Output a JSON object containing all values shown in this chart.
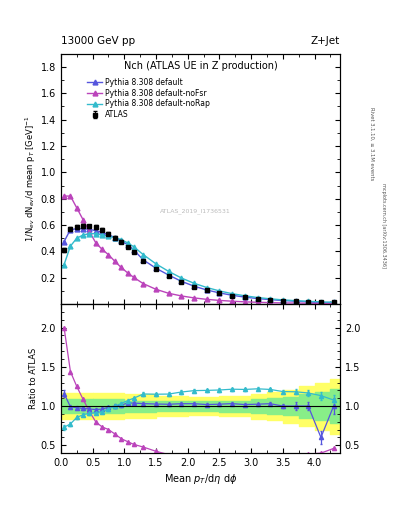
{
  "title_top": "13000 GeV pp",
  "title_right": "Z+Jet",
  "plot_title": "Nch (ATLAS UE in Z production)",
  "ylabel_main": "1/N$_{ev}$ dN$_{ev}$/d mean p$_T$ [GeV]$^{-1}$",
  "ylabel_ratio": "Ratio to ATLAS",
  "xlabel": "Mean $p_T$/d$\\eta$ d$\\phi$",
  "right_label_top": "Rivet 3.1.10, ≥ 3.1M events",
  "right_label_bottom": "mcplots.cern.ch [arXiv:1306.3436]",
  "watermark": "ATLAS_2019_I1736531",
  "atlas_x": [
    0.05,
    0.15,
    0.25,
    0.35,
    0.45,
    0.55,
    0.65,
    0.75,
    0.85,
    0.95,
    1.05,
    1.15,
    1.3,
    1.5,
    1.7,
    1.9,
    2.1,
    2.3,
    2.5,
    2.7,
    2.9,
    3.1,
    3.3,
    3.5,
    3.7,
    3.9,
    4.1,
    4.3
  ],
  "atlas_y": [
    0.41,
    0.57,
    0.585,
    0.59,
    0.59,
    0.585,
    0.565,
    0.535,
    0.505,
    0.475,
    0.435,
    0.395,
    0.325,
    0.265,
    0.215,
    0.168,
    0.132,
    0.105,
    0.083,
    0.065,
    0.052,
    0.041,
    0.033,
    0.027,
    0.022,
    0.018,
    0.015,
    0.013
  ],
  "atlas_yerr": [
    0.015,
    0.015,
    0.015,
    0.015,
    0.012,
    0.012,
    0.012,
    0.01,
    0.01,
    0.01,
    0.009,
    0.009,
    0.008,
    0.007,
    0.006,
    0.005,
    0.004,
    0.004,
    0.003,
    0.003,
    0.003,
    0.003,
    0.002,
    0.002,
    0.002,
    0.002,
    0.002,
    0.002
  ],
  "pythia_default_x": [
    0.05,
    0.15,
    0.25,
    0.35,
    0.45,
    0.55,
    0.65,
    0.75,
    0.85,
    0.95,
    1.05,
    1.15,
    1.3,
    1.5,
    1.7,
    1.9,
    2.1,
    2.3,
    2.5,
    2.7,
    2.9,
    3.1,
    3.3,
    3.5,
    3.7,
    3.9,
    4.1,
    4.3
  ],
  "pythia_default_y": [
    0.475,
    0.565,
    0.572,
    0.572,
    0.568,
    0.557,
    0.544,
    0.527,
    0.505,
    0.48,
    0.452,
    0.41,
    0.335,
    0.272,
    0.22,
    0.173,
    0.136,
    0.107,
    0.085,
    0.067,
    0.053,
    0.042,
    0.034,
    0.027,
    0.022,
    0.018,
    0.009,
    0.013
  ],
  "pythia_default_color": "#5555dd",
  "pythia_nofsr_x": [
    0.05,
    0.15,
    0.25,
    0.35,
    0.45,
    0.55,
    0.65,
    0.75,
    0.85,
    0.95,
    1.05,
    1.15,
    1.3,
    1.5,
    1.7,
    1.9,
    2.1,
    2.3,
    2.5,
    2.7,
    2.9,
    3.1,
    3.3,
    3.5,
    3.7,
    3.9,
    4.1,
    4.3
  ],
  "pythia_nofsr_y": [
    0.82,
    0.82,
    0.73,
    0.64,
    0.55,
    0.465,
    0.415,
    0.375,
    0.325,
    0.278,
    0.238,
    0.202,
    0.155,
    0.112,
    0.082,
    0.062,
    0.047,
    0.036,
    0.028,
    0.022,
    0.017,
    0.014,
    0.011,
    0.009,
    0.008,
    0.007,
    0.006,
    0.006
  ],
  "pythia_nofsr_color": "#bb44bb",
  "pythia_norap_x": [
    0.05,
    0.15,
    0.25,
    0.35,
    0.45,
    0.55,
    0.65,
    0.75,
    0.85,
    0.95,
    1.05,
    1.15,
    1.3,
    1.5,
    1.7,
    1.9,
    2.1,
    2.3,
    2.5,
    2.7,
    2.9,
    3.1,
    3.3,
    3.5,
    3.7,
    3.9,
    4.1,
    4.3
  ],
  "pythia_norap_y": [
    0.3,
    0.44,
    0.5,
    0.525,
    0.535,
    0.535,
    0.525,
    0.515,
    0.505,
    0.49,
    0.465,
    0.435,
    0.375,
    0.305,
    0.248,
    0.198,
    0.158,
    0.126,
    0.1,
    0.079,
    0.063,
    0.05,
    0.04,
    0.032,
    0.026,
    0.021,
    0.017,
    0.014
  ],
  "pythia_norap_color": "#33bbcc",
  "ratio_default_x": [
    0.05,
    0.15,
    0.25,
    0.35,
    0.45,
    0.55,
    0.65,
    0.75,
    0.85,
    0.95,
    1.05,
    1.15,
    1.3,
    1.5,
    1.7,
    1.9,
    2.1,
    2.3,
    2.5,
    2.7,
    2.9,
    3.1,
    3.3,
    3.5,
    3.7,
    3.9,
    4.1,
    4.3
  ],
  "ratio_default_y": [
    1.16,
    0.99,
    0.98,
    0.97,
    0.963,
    0.955,
    0.962,
    0.985,
    1.0,
    1.01,
    1.039,
    1.038,
    1.031,
    1.026,
    1.023,
    1.03,
    1.03,
    1.019,
    1.024,
    1.031,
    1.019,
    1.024,
    1.03,
    1.0,
    1.0,
    1.0,
    0.6,
    1.0
  ],
  "ratio_default_yerr": [
    0.05,
    0.02,
    0.02,
    0.02,
    0.02,
    0.02,
    0.02,
    0.02,
    0.02,
    0.02,
    0.02,
    0.02,
    0.02,
    0.02,
    0.02,
    0.02,
    0.02,
    0.02,
    0.02,
    0.02,
    0.02,
    0.02,
    0.02,
    0.02,
    0.05,
    0.05,
    0.08,
    0.1
  ],
  "ratio_nofsr_x": [
    0.05,
    0.15,
    0.25,
    0.35,
    0.45,
    0.55,
    0.65,
    0.75,
    0.85,
    0.95,
    1.05,
    1.15,
    1.3,
    1.5,
    1.7,
    1.9,
    2.1,
    2.3,
    2.5,
    2.7,
    2.9,
    3.1,
    3.3,
    3.5,
    3.7,
    3.9,
    4.1,
    4.3
  ],
  "ratio_nofsr_y": [
    2.0,
    1.44,
    1.25,
    1.085,
    0.932,
    0.797,
    0.734,
    0.701,
    0.644,
    0.585,
    0.547,
    0.511,
    0.477,
    0.423,
    0.381,
    0.369,
    0.356,
    0.343,
    0.337,
    0.338,
    0.327,
    0.341,
    0.333,
    0.333,
    0.364,
    0.389,
    0.4,
    0.46
  ],
  "ratio_norap_x": [
    0.05,
    0.15,
    0.25,
    0.35,
    0.45,
    0.55,
    0.65,
    0.75,
    0.85,
    0.95,
    1.05,
    1.15,
    1.3,
    1.5,
    1.7,
    1.9,
    2.1,
    2.3,
    2.5,
    2.7,
    2.9,
    3.1,
    3.3,
    3.5,
    3.7,
    3.9,
    4.1,
    4.3
  ],
  "ratio_norap_y": [
    0.73,
    0.772,
    0.855,
    0.89,
    0.907,
    0.916,
    0.929,
    0.962,
    1.0,
    1.032,
    1.069,
    1.101,
    1.154,
    1.151,
    1.153,
    1.179,
    1.197,
    1.2,
    1.205,
    1.215,
    1.212,
    1.22,
    1.212,
    1.185,
    1.182,
    1.167,
    1.133,
    1.077
  ],
  "ratio_norap_yerr": [
    0.03,
    0.02,
    0.02,
    0.02,
    0.02,
    0.02,
    0.02,
    0.02,
    0.02,
    0.02,
    0.02,
    0.02,
    0.02,
    0.02,
    0.02,
    0.02,
    0.02,
    0.02,
    0.02,
    0.02,
    0.02,
    0.02,
    0.02,
    0.02,
    0.03,
    0.04,
    0.05,
    0.06
  ],
  "yellow_band_edges": [
    0.0,
    0.5,
    1.0,
    1.5,
    2.0,
    2.5,
    3.0,
    3.25,
    3.5,
    3.75,
    4.0,
    4.25,
    4.5
  ],
  "yellow_band_lo": [
    0.83,
    0.83,
    0.85,
    0.87,
    0.88,
    0.87,
    0.84,
    0.82,
    0.79,
    0.75,
    0.7,
    0.65,
    0.6
  ],
  "yellow_band_hi": [
    1.17,
    1.17,
    1.15,
    1.13,
    1.12,
    1.13,
    1.16,
    1.18,
    1.21,
    1.25,
    1.3,
    1.35,
    1.4
  ],
  "green_band_edges": [
    0.0,
    0.5,
    1.0,
    1.5,
    2.0,
    2.5,
    3.0,
    3.25,
    3.5,
    3.75,
    4.0,
    4.25,
    4.5
  ],
  "green_band_lo": [
    0.91,
    0.91,
    0.93,
    0.94,
    0.94,
    0.93,
    0.91,
    0.9,
    0.88,
    0.85,
    0.82,
    0.78,
    0.74
  ],
  "green_band_hi": [
    1.09,
    1.09,
    1.07,
    1.06,
    1.06,
    1.07,
    1.09,
    1.1,
    1.12,
    1.15,
    1.18,
    1.22,
    1.26
  ],
  "ylim_main": [
    0.0,
    1.9
  ],
  "ylim_ratio": [
    0.4,
    2.3
  ],
  "xlim": [
    0.0,
    4.4
  ],
  "main_yticks": [
    0.2,
    0.4,
    0.6,
    0.8,
    1.0,
    1.2,
    1.4,
    1.6,
    1.8
  ],
  "ratio_yticks": [
    0.5,
    1.0,
    1.5,
    2.0
  ]
}
